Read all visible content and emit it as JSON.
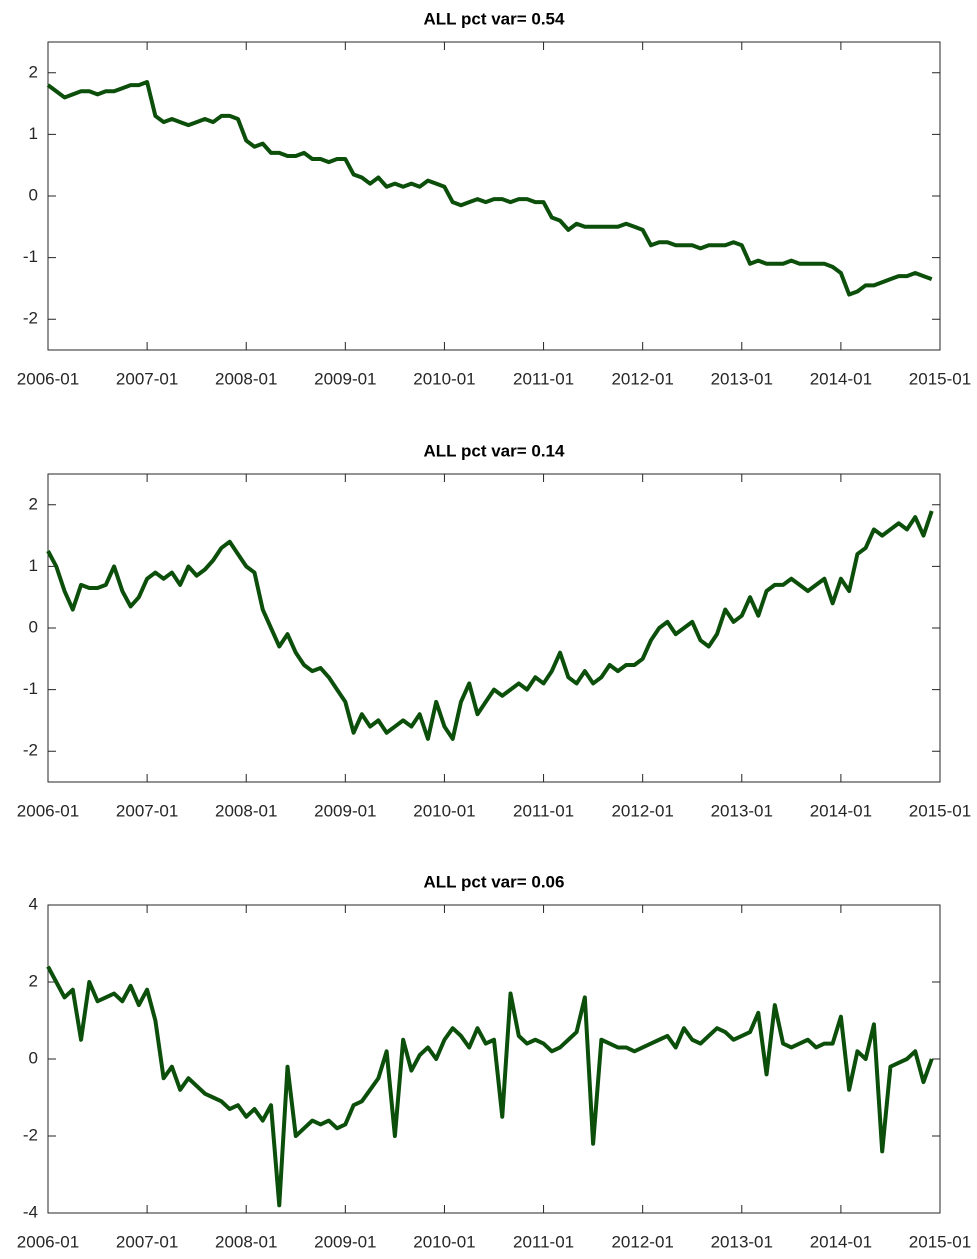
{
  "chart_data": [
    {
      "type": "line",
      "title": "ALL pct var=  0.54",
      "color": "#0b4f0b",
      "xlim": [
        "2006-01",
        "2015-01"
      ],
      "ylim": [
        -2.5,
        2.5
      ],
      "xticks": [
        "2006-01",
        "2007-01",
        "2008-01",
        "2009-01",
        "2010-01",
        "2011-01",
        "2012-01",
        "2013-01",
        "2014-01",
        "2015-01"
      ],
      "yticks": [
        -2,
        -1,
        0,
        1,
        2
      ],
      "x": [
        "2006-01",
        "2006-02",
        "2006-03",
        "2006-04",
        "2006-05",
        "2006-06",
        "2006-07",
        "2006-08",
        "2006-09",
        "2006-10",
        "2006-11",
        "2006-12",
        "2007-01",
        "2007-02",
        "2007-03",
        "2007-04",
        "2007-05",
        "2007-06",
        "2007-07",
        "2007-08",
        "2007-09",
        "2007-10",
        "2007-11",
        "2007-12",
        "2008-01",
        "2008-02",
        "2008-03",
        "2008-04",
        "2008-05",
        "2008-06",
        "2008-07",
        "2008-08",
        "2008-09",
        "2008-10",
        "2008-11",
        "2008-12",
        "2009-01",
        "2009-02",
        "2009-03",
        "2009-04",
        "2009-05",
        "2009-06",
        "2009-07",
        "2009-08",
        "2009-09",
        "2009-10",
        "2009-11",
        "2009-12",
        "2010-01",
        "2010-02",
        "2010-03",
        "2010-04",
        "2010-05",
        "2010-06",
        "2010-07",
        "2010-08",
        "2010-09",
        "2010-10",
        "2010-11",
        "2010-12",
        "2011-01",
        "2011-02",
        "2011-03",
        "2011-04",
        "2011-05",
        "2011-06",
        "2011-07",
        "2011-08",
        "2011-09",
        "2011-10",
        "2011-11",
        "2011-12",
        "2012-01",
        "2012-02",
        "2012-03",
        "2012-04",
        "2012-05",
        "2012-06",
        "2012-07",
        "2012-08",
        "2012-09",
        "2012-10",
        "2012-11",
        "2012-12",
        "2013-01",
        "2013-02",
        "2013-03",
        "2013-04",
        "2013-05",
        "2013-06",
        "2013-07",
        "2013-08",
        "2013-09",
        "2013-10",
        "2013-11",
        "2013-12",
        "2014-01",
        "2014-02",
        "2014-03",
        "2014-04",
        "2014-05",
        "2014-06",
        "2014-07",
        "2014-08",
        "2014-09",
        "2014-10",
        "2014-11",
        "2014-12"
      ],
      "values": [
        1.8,
        1.7,
        1.6,
        1.65,
        1.7,
        1.7,
        1.65,
        1.7,
        1.7,
        1.75,
        1.8,
        1.8,
        1.85,
        1.3,
        1.2,
        1.25,
        1.2,
        1.15,
        1.2,
        1.25,
        1.2,
        1.3,
        1.3,
        1.25,
        0.9,
        0.8,
        0.85,
        0.7,
        0.7,
        0.65,
        0.65,
        0.7,
        0.6,
        0.6,
        0.55,
        0.6,
        0.6,
        0.35,
        0.3,
        0.2,
        0.3,
        0.15,
        0.2,
        0.15,
        0.2,
        0.15,
        0.25,
        0.2,
        0.15,
        -0.1,
        -0.15,
        -0.1,
        -0.05,
        -0.1,
        -0.05,
        -0.05,
        -0.1,
        -0.05,
        -0.05,
        -0.1,
        -0.1,
        -0.35,
        -0.4,
        -0.55,
        -0.45,
        -0.5,
        -0.5,
        -0.5,
        -0.5,
        -0.5,
        -0.45,
        -0.5,
        -0.55,
        -0.8,
        -0.75,
        -0.75,
        -0.8,
        -0.8,
        -0.8,
        -0.85,
        -0.8,
        -0.8,
        -0.8,
        -0.75,
        -0.8,
        -1.1,
        -1.05,
        -1.1,
        -1.1,
        -1.1,
        -1.05,
        -1.1,
        -1.1,
        -1.1,
        -1.1,
        -1.15,
        -1.25,
        -1.6,
        -1.55,
        -1.45,
        -1.45,
        -1.4,
        -1.35,
        -1.3,
        -1.3,
        -1.25,
        -1.3,
        -1.35
      ]
    },
    {
      "type": "line",
      "title": "ALL pct var=  0.14",
      "color": "#0b4f0b",
      "xlim": [
        "2006-01",
        "2015-01"
      ],
      "ylim": [
        -2.5,
        2.5
      ],
      "xticks": [
        "2006-01",
        "2007-01",
        "2008-01",
        "2009-01",
        "2010-01",
        "2011-01",
        "2012-01",
        "2013-01",
        "2014-01",
        "2015-01"
      ],
      "yticks": [
        -2,
        -1,
        0,
        1,
        2
      ],
      "x": [
        "2006-01",
        "2006-02",
        "2006-03",
        "2006-04",
        "2006-05",
        "2006-06",
        "2006-07",
        "2006-08",
        "2006-09",
        "2006-10",
        "2006-11",
        "2006-12",
        "2007-01",
        "2007-02",
        "2007-03",
        "2007-04",
        "2007-05",
        "2007-06",
        "2007-07",
        "2007-08",
        "2007-09",
        "2007-10",
        "2007-11",
        "2007-12",
        "2008-01",
        "2008-02",
        "2008-03",
        "2008-04",
        "2008-05",
        "2008-06",
        "2008-07",
        "2008-08",
        "2008-09",
        "2008-10",
        "2008-11",
        "2008-12",
        "2009-01",
        "2009-02",
        "2009-03",
        "2009-04",
        "2009-05",
        "2009-06",
        "2009-07",
        "2009-08",
        "2009-09",
        "2009-10",
        "2009-11",
        "2009-12",
        "2010-01",
        "2010-02",
        "2010-03",
        "2010-04",
        "2010-05",
        "2010-06",
        "2010-07",
        "2010-08",
        "2010-09",
        "2010-10",
        "2010-11",
        "2010-12",
        "2011-01",
        "2011-02",
        "2011-03",
        "2011-04",
        "2011-05",
        "2011-06",
        "2011-07",
        "2011-08",
        "2011-09",
        "2011-10",
        "2011-11",
        "2011-12",
        "2012-01",
        "2012-02",
        "2012-03",
        "2012-04",
        "2012-05",
        "2012-06",
        "2012-07",
        "2012-08",
        "2012-09",
        "2012-10",
        "2012-11",
        "2012-12",
        "2013-01",
        "2013-02",
        "2013-03",
        "2013-04",
        "2013-05",
        "2013-06",
        "2013-07",
        "2013-08",
        "2013-09",
        "2013-10",
        "2013-11",
        "2013-12",
        "2014-01",
        "2014-02",
        "2014-03",
        "2014-04",
        "2014-05",
        "2014-06",
        "2014-07",
        "2014-08",
        "2014-09",
        "2014-10",
        "2014-11",
        "2014-12"
      ],
      "values": [
        1.25,
        1.0,
        0.6,
        0.3,
        0.7,
        0.65,
        0.65,
        0.7,
        1.0,
        0.6,
        0.35,
        0.5,
        0.8,
        0.9,
        0.8,
        0.9,
        0.7,
        1.0,
        0.85,
        0.95,
        1.1,
        1.3,
        1.4,
        1.2,
        1.0,
        0.9,
        0.3,
        0.0,
        -0.3,
        -0.1,
        -0.4,
        -0.6,
        -0.7,
        -0.65,
        -0.8,
        -1.0,
        -1.2,
        -1.7,
        -1.4,
        -1.6,
        -1.5,
        -1.7,
        -1.6,
        -1.5,
        -1.6,
        -1.4,
        -1.8,
        -1.2,
        -1.6,
        -1.8,
        -1.2,
        -0.9,
        -1.4,
        -1.2,
        -1.0,
        -1.1,
        -1.0,
        -0.9,
        -1.0,
        -0.8,
        -0.9,
        -0.7,
        -0.4,
        -0.8,
        -0.9,
        -0.7,
        -0.9,
        -0.8,
        -0.6,
        -0.7,
        -0.6,
        -0.6,
        -0.5,
        -0.2,
        0.0,
        0.1,
        -0.1,
        0.0,
        0.1,
        -0.2,
        -0.3,
        -0.1,
        0.3,
        0.1,
        0.2,
        0.5,
        0.2,
        0.6,
        0.7,
        0.7,
        0.8,
        0.7,
        0.6,
        0.7,
        0.8,
        0.4,
        0.8,
        0.6,
        1.2,
        1.3,
        1.6,
        1.5,
        1.6,
        1.7,
        1.6,
        1.8,
        1.5,
        1.9
      ]
    },
    {
      "type": "line",
      "title": "ALL pct var=  0.06",
      "color": "#0b4f0b",
      "xlim": [
        "2006-01",
        "2015-01"
      ],
      "ylim": [
        -4,
        4
      ],
      "xticks": [
        "2006-01",
        "2007-01",
        "2008-01",
        "2009-01",
        "2010-01",
        "2011-01",
        "2012-01",
        "2013-01",
        "2014-01",
        "2015-01"
      ],
      "yticks": [
        -4,
        -2,
        0,
        2,
        4
      ],
      "x": [
        "2006-01",
        "2006-02",
        "2006-03",
        "2006-04",
        "2006-05",
        "2006-06",
        "2006-07",
        "2006-08",
        "2006-09",
        "2006-10",
        "2006-11",
        "2006-12",
        "2007-01",
        "2007-02",
        "2007-03",
        "2007-04",
        "2007-05",
        "2007-06",
        "2007-07",
        "2007-08",
        "2007-09",
        "2007-10",
        "2007-11",
        "2007-12",
        "2008-01",
        "2008-02",
        "2008-03",
        "2008-04",
        "2008-05",
        "2008-06",
        "2008-07",
        "2008-08",
        "2008-09",
        "2008-10",
        "2008-11",
        "2008-12",
        "2009-01",
        "2009-02",
        "2009-03",
        "2009-04",
        "2009-05",
        "2009-06",
        "2009-07",
        "2009-08",
        "2009-09",
        "2009-10",
        "2009-11",
        "2009-12",
        "2010-01",
        "2010-02",
        "2010-03",
        "2010-04",
        "2010-05",
        "2010-06",
        "2010-07",
        "2010-08",
        "2010-09",
        "2010-10",
        "2010-11",
        "2010-12",
        "2011-01",
        "2011-02",
        "2011-03",
        "2011-04",
        "2011-05",
        "2011-06",
        "2011-07",
        "2011-08",
        "2011-09",
        "2011-10",
        "2011-11",
        "2011-12",
        "2012-01",
        "2012-02",
        "2012-03",
        "2012-04",
        "2012-05",
        "2012-06",
        "2012-07",
        "2012-08",
        "2012-09",
        "2012-10",
        "2012-11",
        "2012-12",
        "2013-01",
        "2013-02",
        "2013-03",
        "2013-04",
        "2013-05",
        "2013-06",
        "2013-07",
        "2013-08",
        "2013-09",
        "2013-10",
        "2013-11",
        "2013-12",
        "2014-01",
        "2014-02",
        "2014-03",
        "2014-04",
        "2014-05",
        "2014-06",
        "2014-07",
        "2014-08",
        "2014-09",
        "2014-10",
        "2014-11",
        "2014-12"
      ],
      "values": [
        2.4,
        2.0,
        1.6,
        1.8,
        0.5,
        2.0,
        1.5,
        1.6,
        1.7,
        1.5,
        1.9,
        1.4,
        1.8,
        1.0,
        -0.5,
        -0.2,
        -0.8,
        -0.5,
        -0.7,
        -0.9,
        -1.0,
        -1.1,
        -1.3,
        -1.2,
        -1.5,
        -1.3,
        -1.6,
        -1.2,
        -3.8,
        -0.2,
        -2.0,
        -1.8,
        -1.6,
        -1.7,
        -1.6,
        -1.8,
        -1.7,
        -1.2,
        -1.1,
        -0.8,
        -0.5,
        0.2,
        -2.0,
        0.5,
        -0.3,
        0.1,
        0.3,
        0.0,
        0.5,
        0.8,
        0.6,
        0.3,
        0.8,
        0.4,
        0.5,
        -1.5,
        1.7,
        0.6,
        0.4,
        0.5,
        0.4,
        0.2,
        0.3,
        0.5,
        0.7,
        1.6,
        -2.2,
        0.5,
        0.4,
        0.3,
        0.3,
        0.2,
        0.3,
        0.4,
        0.5,
        0.6,
        0.3,
        0.8,
        0.5,
        0.4,
        0.6,
        0.8,
        0.7,
        0.5,
        0.6,
        0.7,
        1.2,
        -0.4,
        1.4,
        0.4,
        0.3,
        0.4,
        0.5,
        0.3,
        0.4,
        0.4,
        1.1,
        -0.8,
        0.2,
        0.0,
        0.9,
        -2.4,
        -0.2,
        -0.1,
        0.0,
        0.2,
        -0.6,
        0.0
      ]
    }
  ]
}
